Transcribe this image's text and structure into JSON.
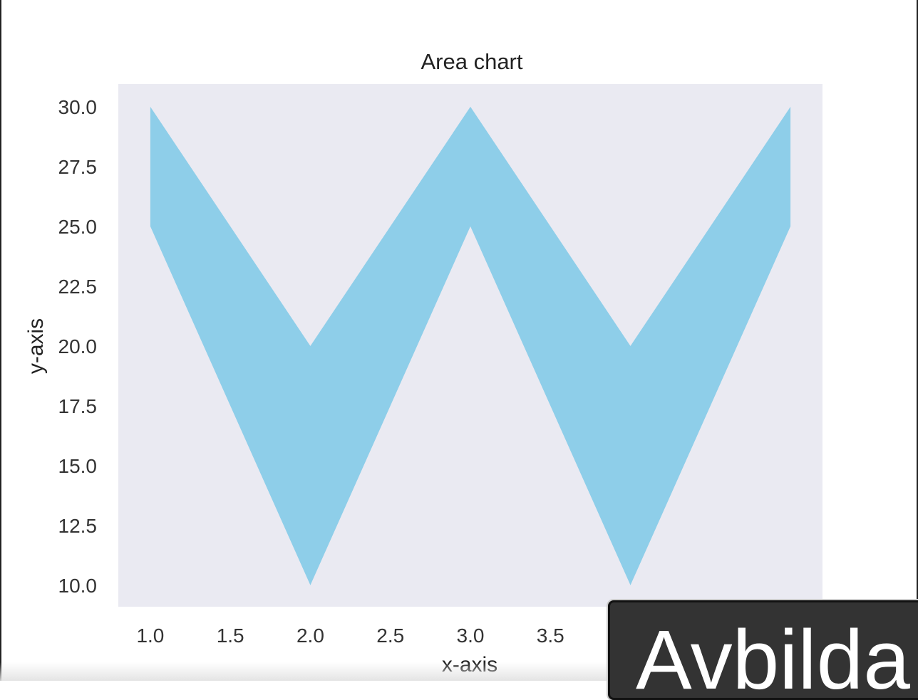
{
  "chart_data": {
    "type": "area",
    "title": "Area chart",
    "xlabel": "x-axis",
    "ylabel": "y-axis",
    "x": [
      1,
      2,
      3,
      4,
      5
    ],
    "y_lower": [
      25,
      10,
      25,
      10,
      25
    ],
    "y_upper": [
      30,
      20,
      30,
      20,
      30
    ],
    "xlim": [
      0.8,
      5.2
    ],
    "ylim": [
      9.1,
      30.95
    ],
    "x_ticks": [
      "1.0",
      "1.5",
      "2.0",
      "2.5",
      "3.0",
      "3.5"
    ],
    "y_ticks": [
      "10.0",
      "12.5",
      "15.0",
      "17.5",
      "20.0",
      "22.5",
      "25.0",
      "27.5",
      "30.0"
    ],
    "fill_color": "#8ecee9",
    "background_color": "#eaeaf2",
    "grid": false,
    "legend": "none"
  },
  "overlay": {
    "label": "Avbilda"
  }
}
